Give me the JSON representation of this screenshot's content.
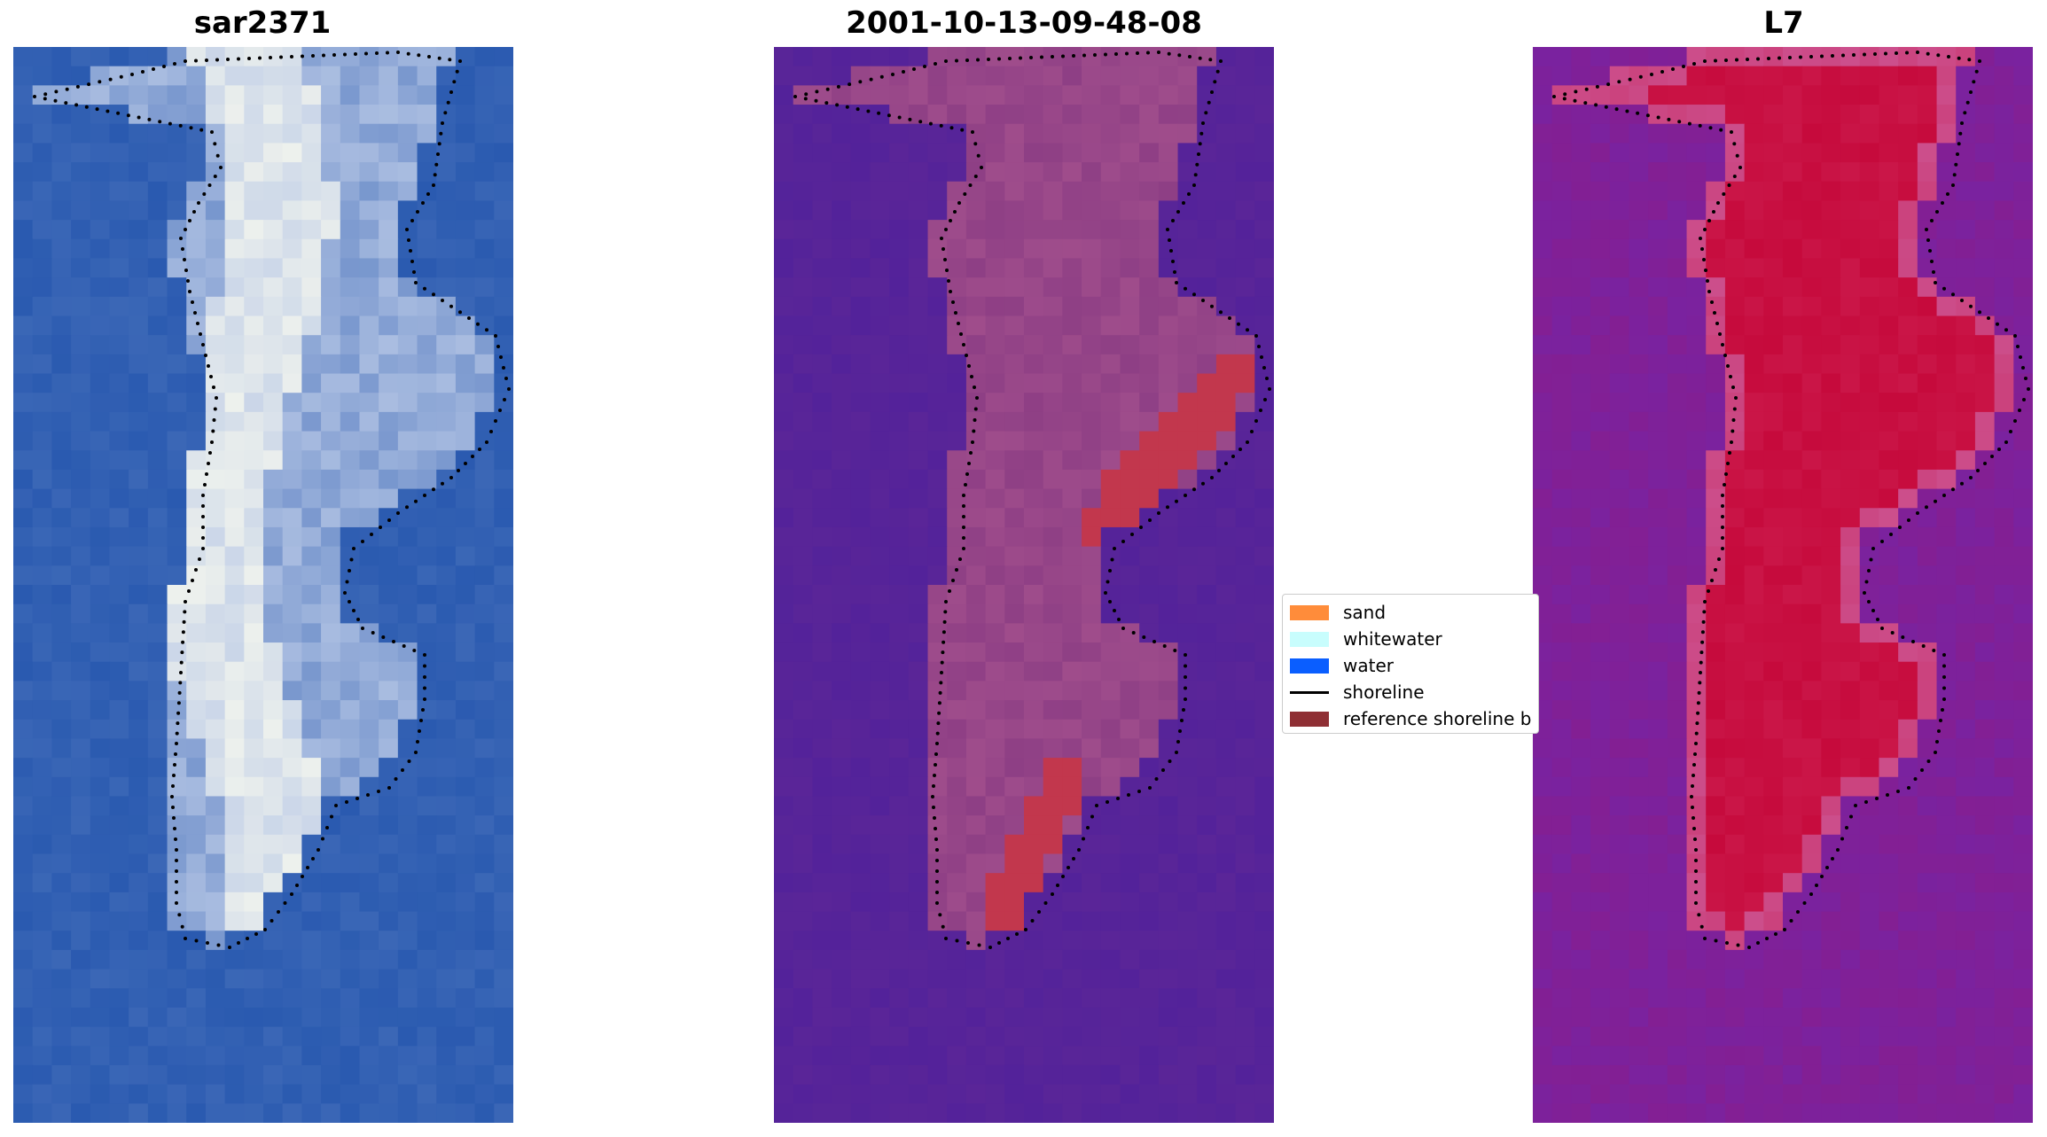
{
  "panels": {
    "left": {
      "title": "sar2371"
    },
    "middle": {
      "title": "2001-10-13-09-48-08"
    },
    "right": {
      "title": "L7"
    }
  },
  "legend": {
    "items": [
      {
        "label": "sand",
        "color": "#ff8c3a",
        "kind": "swatch"
      },
      {
        "label": "whitewater",
        "color": "#c8fdfd",
        "kind": "swatch"
      },
      {
        "label": "water",
        "color": "#0a5eff",
        "kind": "swatch"
      },
      {
        "label": "shoreline",
        "color": "#000000",
        "kind": "line"
      },
      {
        "label": "reference shoreline b",
        "color": "#8f2f34",
        "kind": "swatch"
      }
    ]
  },
  "colors": {
    "sar_water": "#2a5ab0",
    "sar_land": "#b8c8e6",
    "sar_bright": "#f4f6ee",
    "class_water": "#53229a",
    "class_land": "#8e3f85",
    "class_ref": "#c2374d",
    "l7_water": "#7a229f",
    "l7_land": "#c60a3c",
    "shoreline_dots": "#000000"
  }
}
